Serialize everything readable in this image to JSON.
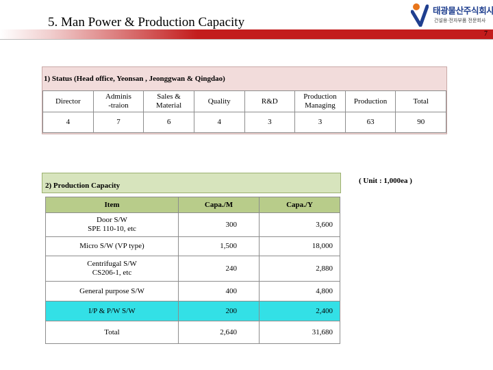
{
  "header": {
    "title": "5. Man Power & Production Capacity",
    "page_number": "7",
    "logo": {
      "name": "태광물산주식회사",
      "tagline": "건설용·전자부품 전문회사"
    },
    "band_color": "#c31d1d"
  },
  "status": {
    "heading": "1) Status  (Head office, Yeonsan , Jeonggwan & Qingdao)",
    "columns": [
      {
        "label": "Director",
        "value": "4"
      },
      {
        "label": "Adminis\n-traion",
        "value": "7"
      },
      {
        "label": "Sales &\nMaterial",
        "value": "6"
      },
      {
        "label": "Quality",
        "value": "4"
      },
      {
        "label": "R&D",
        "value": "3"
      },
      {
        "label": "Production\nManaging",
        "value": "3"
      },
      {
        "label": "Production",
        "value": "63"
      },
      {
        "label": "Total",
        "value": "90"
      }
    ],
    "panel_color": "#f2dcdb"
  },
  "capacity": {
    "heading": "2) Production Capacity",
    "unit": "( Unit :  1,000ea )",
    "headers": [
      "Item",
      "Capa./M",
      "Capa./Y"
    ],
    "rows": [
      {
        "item": "Door S/W\nSPE 110-10, etc",
        "per_month": "300",
        "per_year": "3,600",
        "highlight": false
      },
      {
        "item": "Micro S/W (VP type)",
        "per_month": "1,500",
        "per_year": "18,000",
        "highlight": false
      },
      {
        "item": "Centrifugal S/W\nCS206-1, etc",
        "per_month": "240",
        "per_year": "2,880",
        "highlight": false
      },
      {
        "item": "General purpose S/W",
        "per_month": "400",
        "per_year": "4,800",
        "highlight": false
      },
      {
        "item": "I/P & P/W  S/W",
        "per_month": "200",
        "per_year": "2,400",
        "highlight": true
      },
      {
        "item": "Total",
        "per_month": "2,640",
        "per_year": "31,680",
        "highlight": false
      }
    ],
    "panel_color": "#d7e4bd",
    "header_color": "#b8cc8a",
    "highlight_color": "#33e0e6"
  }
}
